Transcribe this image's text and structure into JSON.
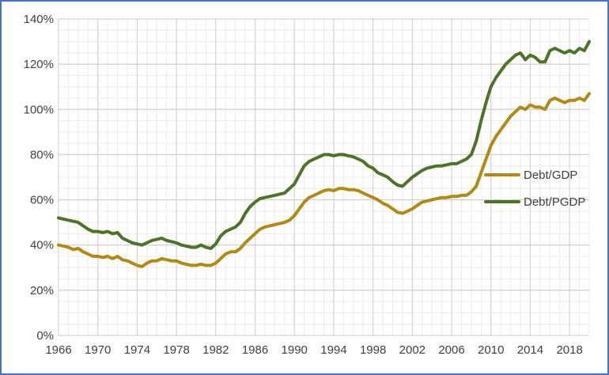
{
  "chart_data": {
    "type": "line",
    "title": "",
    "xlabel": "",
    "ylabel": "",
    "xlim": [
      1966,
      2020
    ],
    "ylim": [
      0,
      140
    ],
    "x_ticks": [
      "1966",
      "1970",
      "1974",
      "1978",
      "1982",
      "1986",
      "1990",
      "1994",
      "1998",
      "2002",
      "2006",
      "2010",
      "2014",
      "2018"
    ],
    "y_ticks": [
      "0%",
      "20%",
      "40%",
      "60%",
      "80%",
      "100%",
      "120%",
      "140%"
    ],
    "grid": true,
    "legend_position": "right",
    "series": [
      {
        "name": "Debt/GDP",
        "color": "#b08a12",
        "points": [
          [
            1966,
            40
          ],
          [
            1966.5,
            39.5
          ],
          [
            1967,
            39
          ],
          [
            1967.5,
            38
          ],
          [
            1968,
            38.5
          ],
          [
            1968.5,
            37
          ],
          [
            1969,
            36
          ],
          [
            1969.5,
            35
          ],
          [
            1970,
            35
          ],
          [
            1970.5,
            34.5
          ],
          [
            1971,
            35
          ],
          [
            1971.5,
            34
          ],
          [
            1972,
            35
          ],
          [
            1972.5,
            33.5
          ],
          [
            1973,
            33
          ],
          [
            1973.5,
            32
          ],
          [
            1974,
            31
          ],
          [
            1974.5,
            30.5
          ],
          [
            1975,
            32
          ],
          [
            1975.5,
            33
          ],
          [
            1976,
            33
          ],
          [
            1976.5,
            34
          ],
          [
            1977,
            33.5
          ],
          [
            1977.5,
            33
          ],
          [
            1978,
            33
          ],
          [
            1978.5,
            32
          ],
          [
            1979,
            31.5
          ],
          [
            1979.5,
            31
          ],
          [
            1980,
            31
          ],
          [
            1980.5,
            31.5
          ],
          [
            1981,
            31
          ],
          [
            1981.5,
            31
          ],
          [
            1982,
            32
          ],
          [
            1982.5,
            34
          ],
          [
            1983,
            36
          ],
          [
            1983.5,
            37
          ],
          [
            1984,
            37
          ],
          [
            1984.5,
            38.5
          ],
          [
            1985,
            41
          ],
          [
            1985.5,
            43
          ],
          [
            1986,
            45
          ],
          [
            1986.5,
            47
          ],
          [
            1987,
            48
          ],
          [
            1987.5,
            48.5
          ],
          [
            1988,
            49
          ],
          [
            1988.5,
            49.5
          ],
          [
            1989,
            50
          ],
          [
            1989.5,
            51
          ],
          [
            1990,
            53
          ],
          [
            1990.5,
            56
          ],
          [
            1991,
            59
          ],
          [
            1991.5,
            61
          ],
          [
            1992,
            62
          ],
          [
            1992.5,
            63
          ],
          [
            1993,
            64
          ],
          [
            1993.5,
            64.5
          ],
          [
            1994,
            64
          ],
          [
            1994.5,
            65
          ],
          [
            1995,
            65
          ],
          [
            1995.5,
            64.5
          ],
          [
            1996,
            64.5
          ],
          [
            1996.5,
            64
          ],
          [
            1997,
            63
          ],
          [
            1997.5,
            62
          ],
          [
            1998,
            61
          ],
          [
            1998.5,
            60
          ],
          [
            1999,
            58.5
          ],
          [
            1999.5,
            57.5
          ],
          [
            2000,
            56
          ],
          [
            2000.5,
            54.5
          ],
          [
            2001,
            54
          ],
          [
            2001.5,
            55
          ],
          [
            2002,
            56
          ],
          [
            2002.5,
            57.5
          ],
          [
            2003,
            59
          ],
          [
            2003.5,
            59.5
          ],
          [
            2004,
            60
          ],
          [
            2004.5,
            60.5
          ],
          [
            2005,
            61
          ],
          [
            2005.5,
            61
          ],
          [
            2006,
            61.5
          ],
          [
            2006.5,
            61.5
          ],
          [
            2007,
            62
          ],
          [
            2007.5,
            62
          ],
          [
            2008,
            63.5
          ],
          [
            2008.5,
            66
          ],
          [
            2009,
            72
          ],
          [
            2009.5,
            78
          ],
          [
            2010,
            84
          ],
          [
            2010.5,
            88
          ],
          [
            2011,
            91
          ],
          [
            2011.5,
            94
          ],
          [
            2012,
            97
          ],
          [
            2012.5,
            99
          ],
          [
            2013,
            101
          ],
          [
            2013.5,
            100
          ],
          [
            2014,
            102
          ],
          [
            2014.5,
            101
          ],
          [
            2015,
            101
          ],
          [
            2015.5,
            100
          ],
          [
            2016,
            104
          ],
          [
            2016.5,
            105
          ],
          [
            2017,
            104
          ],
          [
            2017.5,
            103
          ],
          [
            2018,
            104
          ],
          [
            2018.5,
            104
          ],
          [
            2019,
            105
          ],
          [
            2019.5,
            104
          ],
          [
            2020,
            107
          ]
        ]
      },
      {
        "name": "Debt/PGDP",
        "color": "#4e7328",
        "points": [
          [
            1966,
            52
          ],
          [
            1966.5,
            51.5
          ],
          [
            1967,
            51
          ],
          [
            1967.5,
            50.5
          ],
          [
            1968,
            50
          ],
          [
            1968.5,
            48.5
          ],
          [
            1969,
            47
          ],
          [
            1969.5,
            46
          ],
          [
            1970,
            46
          ],
          [
            1970.5,
            45.5
          ],
          [
            1971,
            46
          ],
          [
            1971.5,
            45
          ],
          [
            1972,
            45.5
          ],
          [
            1972.5,
            43
          ],
          [
            1973,
            42
          ],
          [
            1973.5,
            41
          ],
          [
            1974,
            40.5
          ],
          [
            1974.5,
            40
          ],
          [
            1975,
            41
          ],
          [
            1975.5,
            42
          ],
          [
            1976,
            42.5
          ],
          [
            1976.5,
            43
          ],
          [
            1977,
            42
          ],
          [
            1977.5,
            41.5
          ],
          [
            1978,
            41
          ],
          [
            1978.5,
            40
          ],
          [
            1979,
            39.5
          ],
          [
            1979.5,
            39
          ],
          [
            1980,
            39
          ],
          [
            1980.5,
            40
          ],
          [
            1981,
            39
          ],
          [
            1981.5,
            38.5
          ],
          [
            1982,
            40.5
          ],
          [
            1982.5,
            44
          ],
          [
            1983,
            46
          ],
          [
            1983.5,
            47
          ],
          [
            1984,
            48
          ],
          [
            1984.5,
            50
          ],
          [
            1985,
            54
          ],
          [
            1985.5,
            57
          ],
          [
            1986,
            59
          ],
          [
            1986.5,
            60.5
          ],
          [
            1987,
            61
          ],
          [
            1987.5,
            61.5
          ],
          [
            1988,
            62
          ],
          [
            1988.5,
            62.5
          ],
          [
            1989,
            63
          ],
          [
            1989.5,
            65
          ],
          [
            1990,
            67
          ],
          [
            1990.5,
            71
          ],
          [
            1991,
            75
          ],
          [
            1991.5,
            77
          ],
          [
            1992,
            78
          ],
          [
            1992.5,
            79
          ],
          [
            1993,
            80
          ],
          [
            1993.5,
            80
          ],
          [
            1994,
            79.5
          ],
          [
            1994.5,
            80
          ],
          [
            1995,
            80
          ],
          [
            1995.5,
            79.5
          ],
          [
            1996,
            79
          ],
          [
            1996.5,
            78
          ],
          [
            1997,
            77
          ],
          [
            1997.5,
            75
          ],
          [
            1998,
            74
          ],
          [
            1998.5,
            72
          ],
          [
            1999,
            71
          ],
          [
            1999.5,
            70
          ],
          [
            2000,
            68
          ],
          [
            2000.5,
            66.5
          ],
          [
            2001,
            66
          ],
          [
            2001.5,
            68
          ],
          [
            2002,
            70
          ],
          [
            2002.5,
            71.5
          ],
          [
            2003,
            73
          ],
          [
            2003.5,
            74
          ],
          [
            2004,
            74.5
          ],
          [
            2004.5,
            75
          ],
          [
            2005,
            75
          ],
          [
            2005.5,
            75.5
          ],
          [
            2006,
            76
          ],
          [
            2006.5,
            76
          ],
          [
            2007,
            77
          ],
          [
            2007.5,
            78
          ],
          [
            2008,
            80
          ],
          [
            2008.5,
            86
          ],
          [
            2009,
            95
          ],
          [
            2009.5,
            103
          ],
          [
            2010,
            110
          ],
          [
            2010.5,
            114
          ],
          [
            2011,
            117
          ],
          [
            2011.5,
            120
          ],
          [
            2012,
            122
          ],
          [
            2012.5,
            124
          ],
          [
            2013,
            125
          ],
          [
            2013.5,
            122
          ],
          [
            2014,
            124
          ],
          [
            2014.5,
            123
          ],
          [
            2015,
            121
          ],
          [
            2015.5,
            121
          ],
          [
            2016,
            126
          ],
          [
            2016.5,
            127
          ],
          [
            2017,
            126
          ],
          [
            2017.5,
            125
          ],
          [
            2018,
            126
          ],
          [
            2018.5,
            125
          ],
          [
            2019,
            127
          ],
          [
            2019.5,
            126
          ],
          [
            2020,
            130
          ]
        ]
      }
    ]
  }
}
